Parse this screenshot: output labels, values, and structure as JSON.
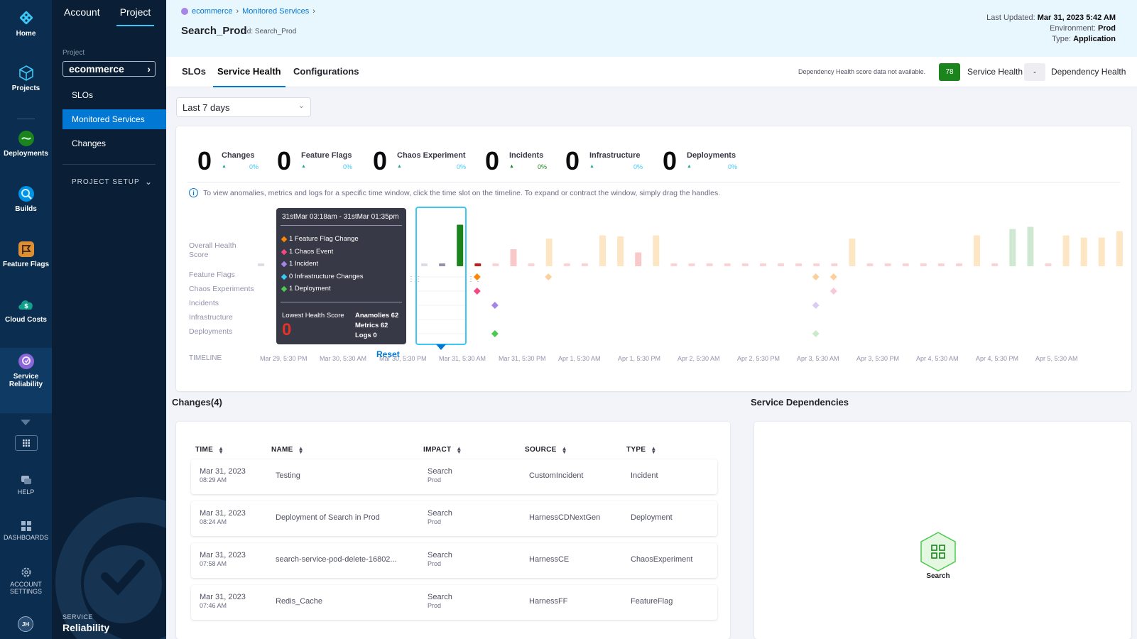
{
  "nav": {
    "items": [
      {
        "label": "Home",
        "icon": "home-icon"
      },
      {
        "label": "Projects",
        "icon": "projects-icon"
      },
      {
        "label": "Deployments",
        "icon": "deployments-icon"
      },
      {
        "label": "Builds",
        "icon": "builds-icon"
      },
      {
        "label": "Feature Flags",
        "icon": "feature-flags-icon"
      },
      {
        "label": "Cloud Costs",
        "icon": "cloud-costs-icon"
      },
      {
        "label": "Service Reliability",
        "icon": "service-reliability-icon"
      }
    ],
    "help": "HELP",
    "dashboards": "DASHBOARDS",
    "account_settings": "ACCOUNT SETTINGS",
    "avatar": "JH"
  },
  "sidebar": {
    "tab_account": "Account",
    "tab_project": "Project",
    "project_label": "Project",
    "project_value": "ecommerce",
    "links": [
      "SLOs",
      "Monitored Services",
      "Changes"
    ],
    "setup": "PROJECT SETUP",
    "brand_sub": "SERVICE",
    "brand_title": "Reliability"
  },
  "header": {
    "crumb_org": "ecommerce",
    "crumb_page": "Monitored Services",
    "service_name": "Search_Prod",
    "service_id": "Id: Search_Prod",
    "last_updated_label": "Last Updated:",
    "last_updated": "Mar 31, 2023 5:42 AM",
    "environment_label": "Environment:",
    "environment": "Prod",
    "type_label": "Type:",
    "type": "Application"
  },
  "tabs": [
    "SLOs",
    "Service Health",
    "Configurations"
  ],
  "health": {
    "dependency_note": "Dependency Health score data not available.",
    "service_score": "78",
    "service_label": "Service Health",
    "dependency_score": "-",
    "dependency_label": "Dependency Health"
  },
  "range": "Last 7 days",
  "stats": [
    {
      "value": "0",
      "label": "Changes",
      "pct": "0%"
    },
    {
      "value": "0",
      "label": "Feature Flags",
      "pct": "0%"
    },
    {
      "value": "0",
      "label": "Chaos Experiment",
      "pct": "0%"
    },
    {
      "value": "0",
      "label": "Incidents",
      "pct": "0%"
    },
    {
      "value": "0",
      "label": "Infrastructure",
      "pct": "0%"
    },
    {
      "value": "0",
      "label": "Deployments",
      "pct": "0%"
    }
  ],
  "info_text": "To view anomalies, metrics and logs for a specific time window, click the time slot on the timeline. To expand or contract the window, simply drag the handles.",
  "timeline": {
    "row_labels": [
      "Overall Health Score",
      "Feature Flags",
      "Chaos Experiments",
      "Incidents",
      "Infrastructure",
      "Deployments"
    ],
    "label": "TIMELINE",
    "ticks": [
      "Mar 29, 5:30 PM",
      "Mar 30, 5:30 AM",
      "Mar 30, 5:30 PM",
      "Mar 31, 5:30 AM",
      "Mar 31, 5:30 PM",
      "Apr 1, 5:30 AM",
      "Apr 1, 5:30 PM",
      "Apr 2, 5:30 AM",
      "Apr 2, 5:30 PM",
      "Apr 3, 5:30 AM",
      "Apr 3, 5:30 PM",
      "Apr 4, 5:30 AM",
      "Apr 4, 5:30 PM",
      "Apr 5, 5:30 AM"
    ],
    "reset": "Reset",
    "health_bars": [
      {
        "score": 0,
        "color": "#dcdde6"
      },
      {
        "score": 0,
        "color": "#9293ab"
      },
      {
        "score": 78,
        "color": "#1b841d"
      },
      {
        "score": 0,
        "color": "#c41c1c"
      },
      {
        "score": 0,
        "color": "#fcd2d2"
      },
      {
        "score": 32,
        "color": "#f9c8c8"
      },
      {
        "score": 0,
        "color": "#fcd2d2"
      },
      {
        "score": 52,
        "color": "#fde6c4"
      },
      {
        "score": 0,
        "color": "#fcd2d2"
      },
      {
        "score": 0,
        "color": "#fcd2d2"
      },
      {
        "score": 58,
        "color": "#fde6c4"
      },
      {
        "score": 56,
        "color": "#fde6c4"
      },
      {
        "score": 26,
        "color": "#f9c8c8"
      },
      {
        "score": 58,
        "color": "#fde6c4"
      },
      {
        "score": 0,
        "color": "#fcd2d2"
      },
      {
        "score": 0,
        "color": "#fcd2d2"
      },
      {
        "score": 0,
        "color": "#fcd2d2"
      },
      {
        "score": 0,
        "color": "#fcd2d2"
      },
      {
        "score": 0,
        "color": "#fcd2d2"
      },
      {
        "score": 0,
        "color": "#fcd2d2"
      },
      {
        "score": 0,
        "color": "#fcd2d2"
      },
      {
        "score": 0,
        "color": "#fcd2d2"
      },
      {
        "score": 0,
        "color": "#fcd2d2"
      },
      {
        "score": 0,
        "color": "#fcd2d2"
      },
      {
        "score": 52,
        "color": "#fde6c4"
      },
      {
        "score": 0,
        "color": "#fcd2d2"
      },
      {
        "score": 0,
        "color": "#fcd2d2"
      },
      {
        "score": 0,
        "color": "#fcd2d2"
      },
      {
        "score": 0,
        "color": "#fcd2d2"
      },
      {
        "score": 0,
        "color": "#fcd2d2"
      },
      {
        "score": 0,
        "color": "#fcd2d2"
      },
      {
        "score": 58,
        "color": "#fde6c4"
      },
      {
        "score": 0,
        "color": "#fcd2d2"
      },
      {
        "score": 70,
        "color": "#cfe8d2"
      },
      {
        "score": 74,
        "color": "#cfe8d2"
      },
      {
        "score": 0,
        "color": "#fcd2d2"
      },
      {
        "score": 58,
        "color": "#fde6c4"
      },
      {
        "score": 54,
        "color": "#fde6c4"
      },
      {
        "score": 54,
        "color": "#fde6c4"
      },
      {
        "score": 66,
        "color": "#fde6c4"
      },
      {
        "score": 76,
        "color": "#cfe8d2"
      },
      {
        "score": 62,
        "color": "#fde6c4"
      },
      {
        "score": 46,
        "color": "#fde6c4"
      },
      {
        "score": 60,
        "color": "#fde6c4"
      },
      {
        "score": 0,
        "color": "#fcd2d2"
      },
      {
        "score": 66,
        "color": "#f3b20e"
      }
    ],
    "events": [
      {
        "slot": 3,
        "row": 1,
        "color": "#ff8800"
      },
      {
        "slot": 3,
        "row": 2,
        "color": "#f34982"
      },
      {
        "slot": 4,
        "row": 3,
        "color": "#a884e6"
      },
      {
        "slot": 4,
        "row": 5,
        "color": "#4dc952"
      },
      {
        "slot": 7,
        "row": 1,
        "color": "#fcd09c"
      },
      {
        "slot": 22,
        "row": 1,
        "color": "#fcd09c"
      },
      {
        "slot": 23,
        "row": 1,
        "color": "#fcd09c"
      },
      {
        "slot": 23,
        "row": 2,
        "color": "#f9c8dc"
      },
      {
        "slot": 22,
        "row": 3,
        "color": "#dccaf5"
      },
      {
        "slot": 22,
        "row": 5,
        "color": "#c9ebca"
      }
    ]
  },
  "tooltip": {
    "window": "31stMar 03:18am - 31stMar 01:35pm",
    "rows": [
      {
        "text": "1 Feature Flag Change",
        "color": "#ff8800"
      },
      {
        "text": "1 Chaos Event",
        "color": "#f34982"
      },
      {
        "text": "1 Incident",
        "color": "#a884e6"
      },
      {
        "text": "0 Infrastructure Changes",
        "color": "#3dc7f6"
      },
      {
        "text": "1 Deployment",
        "color": "#4dc952"
      }
    ],
    "lowest_label": "Lowest Health Score",
    "lowest_value": "0",
    "anomalies": "Anamolies 62",
    "metrics": "Metrics 62",
    "logs": "Logs 0"
  },
  "changes": {
    "title": "Changes(4)",
    "columns": [
      "TIME",
      "NAME",
      "IMPACT",
      "SOURCE",
      "TYPE"
    ],
    "rows": [
      {
        "date": "Mar 31, 2023",
        "time": "08:29 AM",
        "name": "Testing",
        "impact": "Search",
        "impact_env": "Prod",
        "source": "CustomIncident",
        "type": "Incident"
      },
      {
        "date": "Mar 31, 2023",
        "time": "08:24 AM",
        "name": "Deployment of Search in Prod",
        "impact": "Search",
        "impact_env": "Prod",
        "source": "HarnessCDNextGen",
        "type": "Deployment"
      },
      {
        "date": "Mar 31, 2023",
        "time": "07:58 AM",
        "name": "search-service-pod-delete-16802...",
        "impact": "Search",
        "impact_env": "Prod",
        "source": "HarnessCE",
        "type": "ChaosExperiment"
      },
      {
        "date": "Mar 31, 2023",
        "time": "07:46 AM",
        "name": "Redis_Cache",
        "impact": "Search",
        "impact_env": "Prod",
        "source": "HarnessFF",
        "type": "FeatureFlag"
      }
    ]
  },
  "dependencies": {
    "title": "Service Dependencies",
    "node": "Search"
  }
}
